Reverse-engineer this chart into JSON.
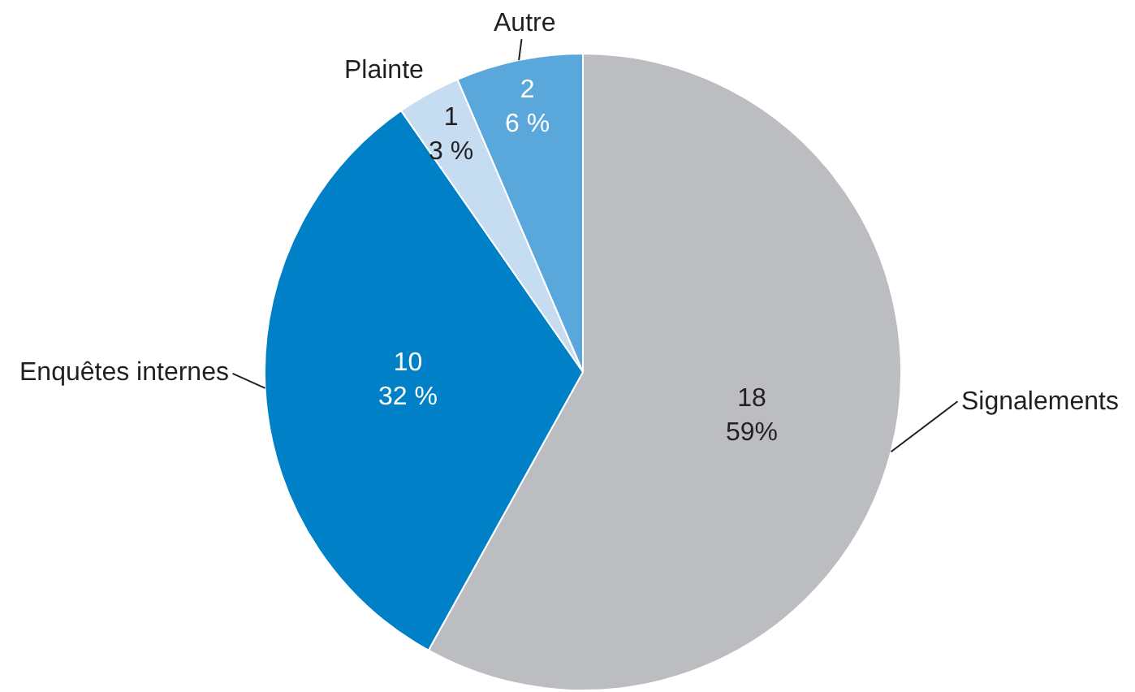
{
  "chart_data": {
    "type": "pie",
    "categories": [
      "Signalements",
      "Enquêtes internes",
      "Plainte",
      "Autre"
    ],
    "values": [
      18,
      10,
      1,
      2
    ],
    "colors": [
      "#bcbdc0",
      "#0080c6",
      "#c6dcf0",
      "#5aa7dc"
    ],
    "value_labels": [
      "18\n59%",
      "10\n32 %",
      "1\n3 %",
      "2\n6 %"
    ],
    "legend": false
  }
}
